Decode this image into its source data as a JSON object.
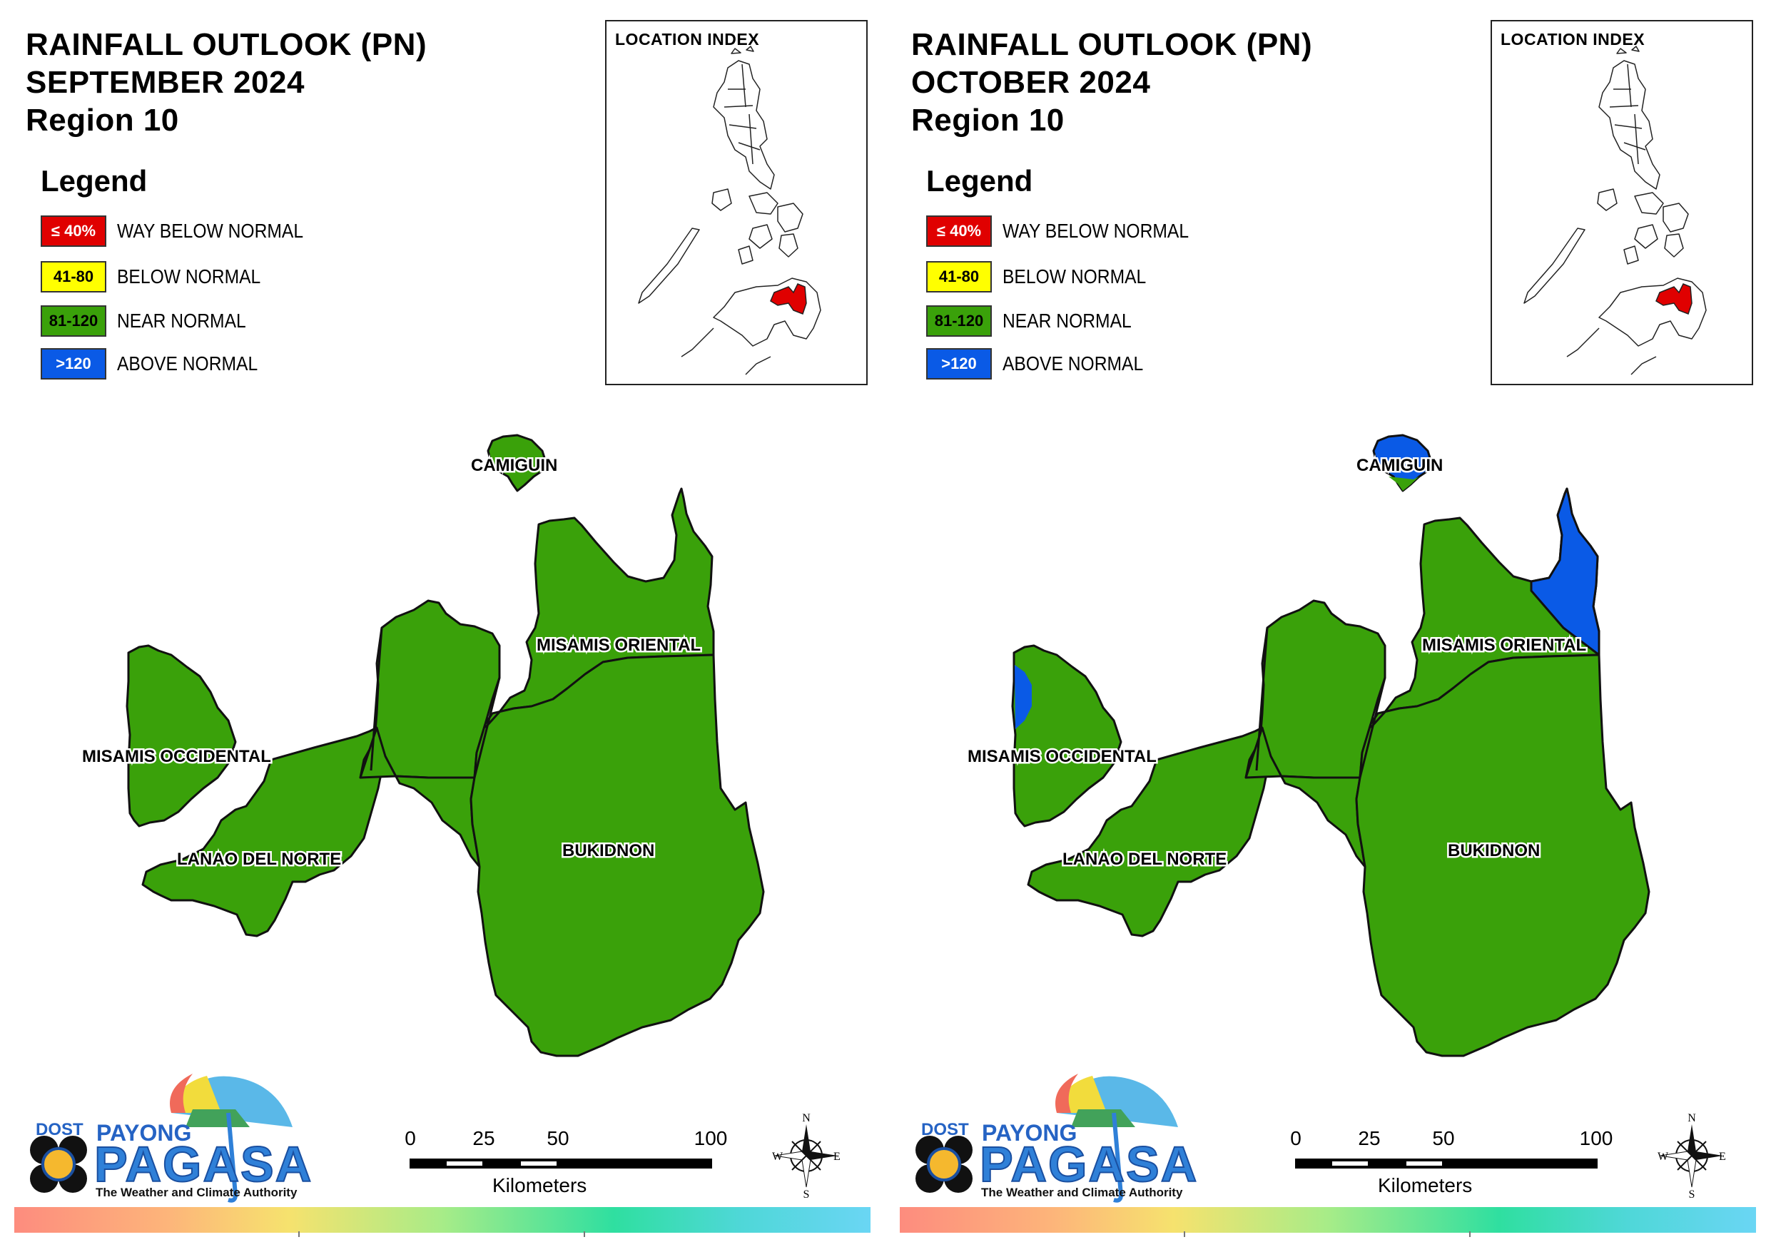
{
  "colors": {
    "way_below": "#e00000",
    "below": "#ffff00",
    "near": "#3aa10a",
    "above": "#0a5ae6"
  },
  "legend": {
    "title": "Legend",
    "items": [
      {
        "range": "≤ 40%",
        "label": "WAY BELOW NORMAL",
        "color": "#e00000",
        "text_color": "#ffffff"
      },
      {
        "range": "41-80",
        "label": "BELOW NORMAL",
        "color": "#ffff00",
        "text_color": "#000000"
      },
      {
        "range": "81-120",
        "label": "NEAR NORMAL",
        "color": "#3aa10a",
        "text_color": "#000000"
      },
      {
        "range": ">120",
        "label": "ABOVE NORMAL",
        "color": "#0a5ae6",
        "text_color": "#ffffff"
      }
    ]
  },
  "inset": {
    "title": "LOCATION INDEX"
  },
  "provinces": {
    "camiguin": "CAMIGUIN",
    "misamis_oriental": "MISAMIS ORIENTAL",
    "misamis_occidental": "MISAMIS OCCIDENTAL",
    "lanao_del_norte": "LANAO DEL NORTE",
    "bukidnon": "BUKIDNON"
  },
  "panels": [
    {
      "title_line1": "RAINFALL OUTLOOK (PN)",
      "title_line2": "SEPTEMBER 2024",
      "title_line3": "Region 10",
      "above_normal_areas": []
    },
    {
      "title_line1": "RAINFALL OUTLOOK (PN)",
      "title_line2": "OCTOBER 2024",
      "title_line3": "Region 10",
      "above_normal_areas": [
        "camiguin-north",
        "misamis-oriental-northeast",
        "misamis-occidental-west"
      ]
    }
  ],
  "scale": {
    "ticks": [
      "0",
      "25",
      "50",
      "100"
    ],
    "unit": "Kilometers"
  },
  "compass": {
    "n": "N",
    "s": "S",
    "e": "E",
    "w": "W"
  },
  "logo": {
    "dost": "DOST",
    "payong": "PAYONG",
    "pagasa": "PAGASA",
    "tagline": "The Weather and Climate Authority"
  }
}
